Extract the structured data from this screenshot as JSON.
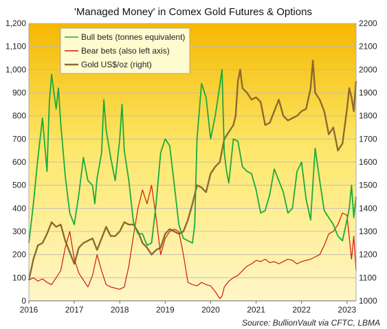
{
  "chart_data": {
    "type": "line",
    "title": "'Managed Money' in Comex Gold Futures & Options",
    "source": "Source: BullionVault via CFTC, LBMA",
    "x_ticks": [
      "2016",
      "2017",
      "2018",
      "2019",
      "2020",
      "2021",
      "2022",
      "2023"
    ],
    "x_range": [
      2016.0,
      2023.2
    ],
    "y_left": {
      "range": [
        0,
        1200
      ],
      "ticks": [
        0,
        100,
        200,
        300,
        400,
        500,
        600,
        700,
        800,
        900,
        1000,
        1100,
        1200
      ],
      "tick_labels": [
        "0",
        "100",
        "200",
        "300",
        "400",
        "500",
        "600",
        "700",
        "800",
        "900",
        "1,000",
        "1,100",
        "1,200"
      ]
    },
    "y_right": {
      "range": [
        1000,
        2200
      ],
      "ticks": [
        1000,
        1100,
        1200,
        1300,
        1400,
        1500,
        1600,
        1700,
        1800,
        1900,
        2000,
        2100,
        2200
      ],
      "tick_labels": [
        "1000",
        "1100",
        "1200",
        "1300",
        "1400",
        "1500",
        "1600",
        "1700",
        "1800",
        "1900",
        "2000",
        "2100",
        "2200"
      ]
    },
    "grid": true,
    "legend_position": "top-left",
    "colors": {
      "bull": "#1aaa3c",
      "bear": "#cc1a0c",
      "gold": "#8c6a2e",
      "bg_top": "#f5b800",
      "bg_bottom": "#fff6c8"
    },
    "series": [
      {
        "name": "Bull bets (tonnes equivalent)",
        "axis": "left",
        "color": "#1aaa3c",
        "x": [
          2016.0,
          2016.1,
          2016.2,
          2016.3,
          2016.4,
          2016.45,
          2016.5,
          2016.55,
          2016.6,
          2016.65,
          2016.7,
          2016.8,
          2016.9,
          2017.0,
          2017.1,
          2017.2,
          2017.3,
          2017.4,
          2017.45,
          2017.5,
          2017.6,
          2017.65,
          2017.7,
          2017.8,
          2017.9,
          2018.0,
          2018.05,
          2018.1,
          2018.2,
          2018.3,
          2018.4,
          2018.5,
          2018.6,
          2018.7,
          2018.8,
          2018.9,
          2019.0,
          2019.1,
          2019.2,
          2019.3,
          2019.4,
          2019.5,
          2019.6,
          2019.65,
          2019.7,
          2019.8,
          2019.9,
          2020.0,
          2020.1,
          2020.2,
          2020.25,
          2020.3,
          2020.35,
          2020.4,
          2020.5,
          2020.6,
          2020.7,
          2020.8,
          2020.9,
          2021.0,
          2021.1,
          2021.2,
          2021.3,
          2021.4,
          2021.5,
          2021.6,
          2021.7,
          2021.8,
          2021.9,
          2022.0,
          2022.1,
          2022.2,
          2022.3,
          2022.4,
          2022.5,
          2022.6,
          2022.7,
          2022.8,
          2022.9,
          2023.0,
          2023.05,
          2023.1,
          2023.15,
          2023.2
        ],
        "values": [
          250,
          420,
          620,
          790,
          560,
          860,
          980,
          900,
          830,
          920,
          770,
          540,
          380,
          330,
          460,
          620,
          520,
          500,
          420,
          530,
          640,
          870,
          740,
          620,
          520,
          700,
          850,
          650,
          520,
          340,
          290,
          290,
          240,
          250,
          420,
          640,
          700,
          670,
          500,
          330,
          270,
          260,
          250,
          330,
          700,
          940,
          880,
          700,
          800,
          930,
          1000,
          640,
          560,
          510,
          700,
          690,
          580,
          560,
          550,
          480,
          380,
          390,
          460,
          570,
          520,
          470,
          380,
          400,
          560,
          600,
          440,
          350,
          660,
          520,
          390,
          360,
          330,
          280,
          260,
          350,
          400,
          500,
          360,
          450
        ]
      },
      {
        "name": "Bear bets (also left axis)",
        "axis": "left",
        "color": "#cc1a0c",
        "x": [
          2016.0,
          2016.1,
          2016.2,
          2016.3,
          2016.4,
          2016.5,
          2016.6,
          2016.7,
          2016.8,
          2016.9,
          2017.0,
          2017.1,
          2017.2,
          2017.3,
          2017.4,
          2017.5,
          2017.6,
          2017.7,
          2017.8,
          2017.9,
          2018.0,
          2018.1,
          2018.2,
          2018.3,
          2018.4,
          2018.5,
          2018.6,
          2018.7,
          2018.8,
          2018.9,
          2019.0,
          2019.1,
          2019.2,
          2019.3,
          2019.4,
          2019.5,
          2019.6,
          2019.7,
          2019.8,
          2019.9,
          2020.0,
          2020.1,
          2020.2,
          2020.25,
          2020.3,
          2020.4,
          2020.5,
          2020.6,
          2020.7,
          2020.8,
          2020.9,
          2021.0,
          2021.1,
          2021.2,
          2021.3,
          2021.4,
          2021.5,
          2021.6,
          2021.7,
          2021.8,
          2021.9,
          2022.0,
          2022.1,
          2022.2,
          2022.3,
          2022.4,
          2022.5,
          2022.6,
          2022.7,
          2022.8,
          2022.9,
          2023.0,
          2023.1,
          2023.15,
          2023.2
        ],
        "values": [
          90,
          100,
          85,
          95,
          80,
          70,
          100,
          130,
          230,
          300,
          180,
          120,
          90,
          60,
          110,
          200,
          130,
          70,
          60,
          55,
          50,
          60,
          150,
          280,
          400,
          480,
          420,
          500,
          360,
          200,
          270,
          300,
          310,
          300,
          200,
          80,
          70,
          65,
          80,
          70,
          65,
          40,
          10,
          20,
          60,
          85,
          100,
          110,
          130,
          150,
          160,
          175,
          170,
          180,
          165,
          170,
          160,
          170,
          180,
          175,
          160,
          170,
          175,
          180,
          190,
          200,
          240,
          290,
          300,
          330,
          380,
          370,
          180,
          280,
          130
        ]
      },
      {
        "name": "Gold US$/oz (right)",
        "axis": "right",
        "color": "#8c6a2e",
        "x": [
          2016.0,
          2016.1,
          2016.2,
          2016.3,
          2016.4,
          2016.5,
          2016.6,
          2016.7,
          2016.8,
          2016.9,
          2017.0,
          2017.1,
          2017.2,
          2017.3,
          2017.4,
          2017.5,
          2017.6,
          2017.7,
          2017.8,
          2017.9,
          2018.0,
          2018.1,
          2018.2,
          2018.3,
          2018.4,
          2018.5,
          2018.6,
          2018.7,
          2018.8,
          2018.9,
          2019.0,
          2019.1,
          2019.2,
          2019.3,
          2019.4,
          2019.5,
          2019.6,
          2019.7,
          2019.8,
          2019.9,
          2020.0,
          2020.1,
          2020.2,
          2020.3,
          2020.4,
          2020.5,
          2020.55,
          2020.6,
          2020.65,
          2020.7,
          2020.8,
          2020.9,
          2021.0,
          2021.1,
          2021.2,
          2021.3,
          2021.4,
          2021.5,
          2021.6,
          2021.7,
          2021.8,
          2021.9,
          2022.0,
          2022.1,
          2022.2,
          2022.25,
          2022.3,
          2022.4,
          2022.5,
          2022.6,
          2022.7,
          2022.8,
          2022.9,
          2023.0,
          2023.05,
          2023.1,
          2023.15,
          2023.2
        ],
        "values": [
          1090,
          1180,
          1240,
          1250,
          1290,
          1340,
          1320,
          1330,
          1260,
          1210,
          1160,
          1230,
          1250,
          1260,
          1270,
          1220,
          1270,
          1320,
          1280,
          1280,
          1300,
          1340,
          1330,
          1330,
          1300,
          1250,
          1230,
          1200,
          1220,
          1230,
          1290,
          1310,
          1300,
          1290,
          1300,
          1350,
          1420,
          1500,
          1490,
          1470,
          1550,
          1580,
          1600,
          1700,
          1730,
          1760,
          1800,
          1950,
          2000,
          1920,
          1900,
          1870,
          1880,
          1860,
          1760,
          1770,
          1820,
          1870,
          1800,
          1780,
          1790,
          1800,
          1820,
          1830,
          1920,
          2040,
          1900,
          1870,
          1820,
          1720,
          1750,
          1650,
          1680,
          1830,
          1920,
          1880,
          1820,
          1950
        ]
      }
    ]
  }
}
